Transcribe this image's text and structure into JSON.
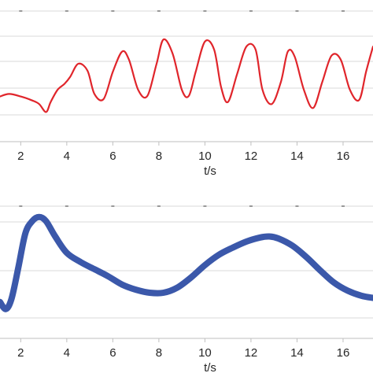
{
  "chart_data": [
    {
      "type": "line",
      "xlabel": "t/s",
      "ylabel": "",
      "xlim": [
        1.1,
        17.3
      ],
      "ylim": [
        0,
        1
      ],
      "x_ticks": [
        2,
        4,
        6,
        8,
        10,
        12,
        14,
        16
      ],
      "grid": true,
      "color": "#e0252b",
      "series": [
        {
          "x": [
            1.1,
            1.5,
            2.0,
            2.5,
            2.8,
            3.1,
            3.3,
            3.6,
            3.9,
            4.15,
            4.5,
            4.9,
            5.2,
            5.6,
            6.0,
            6.4,
            6.7,
            7.1,
            7.5,
            7.9,
            8.2,
            8.6,
            9.0,
            9.3,
            9.6,
            10.0,
            10.4,
            10.7,
            11.0,
            11.4,
            11.8,
            12.2,
            12.5,
            12.9,
            13.3,
            13.6,
            13.9,
            14.3,
            14.7,
            15.1,
            15.5,
            15.9,
            16.3,
            16.7,
            17.0,
            17.3
          ],
          "y": [
            0.355,
            0.38,
            0.355,
            0.315,
            0.28,
            0.2,
            0.3,
            0.42,
            0.48,
            0.55,
            0.68,
            0.61,
            0.38,
            0.33,
            0.6,
            0.8,
            0.72,
            0.42,
            0.36,
            0.68,
            0.92,
            0.78,
            0.42,
            0.36,
            0.6,
            0.9,
            0.82,
            0.45,
            0.3,
            0.58,
            0.85,
            0.82,
            0.42,
            0.28,
            0.5,
            0.8,
            0.75,
            0.42,
            0.24,
            0.5,
            0.76,
            0.72,
            0.42,
            0.32,
            0.6,
            0.85
          ]
        }
      ]
    },
    {
      "type": "line",
      "xlabel": "t/s",
      "ylabel": "",
      "xlim": [
        1.1,
        17.3
      ],
      "ylim": [
        0,
        1
      ],
      "x_ticks": [
        2,
        4,
        6,
        8,
        10,
        12,
        14,
        16
      ],
      "grid": true,
      "color": "#3b58aa",
      "series": [
        {
          "x": [
            1.1,
            1.35,
            1.6,
            1.9,
            2.2,
            2.5,
            2.8,
            3.1,
            3.5,
            4.0,
            4.6,
            5.2,
            5.8,
            6.4,
            7.0,
            7.6,
            8.2,
            8.8,
            9.4,
            10.0,
            10.6,
            11.2,
            11.8,
            12.4,
            12.8,
            13.2,
            13.8,
            14.4,
            15.0,
            15.6,
            16.2,
            16.8,
            17.3
          ],
          "y": [
            0.11,
            0.04,
            0.14,
            0.45,
            0.78,
            0.9,
            0.94,
            0.9,
            0.75,
            0.59,
            0.5,
            0.43,
            0.36,
            0.28,
            0.23,
            0.2,
            0.2,
            0.25,
            0.35,
            0.47,
            0.57,
            0.64,
            0.7,
            0.74,
            0.75,
            0.73,
            0.66,
            0.55,
            0.42,
            0.3,
            0.22,
            0.17,
            0.15
          ]
        }
      ]
    }
  ]
}
